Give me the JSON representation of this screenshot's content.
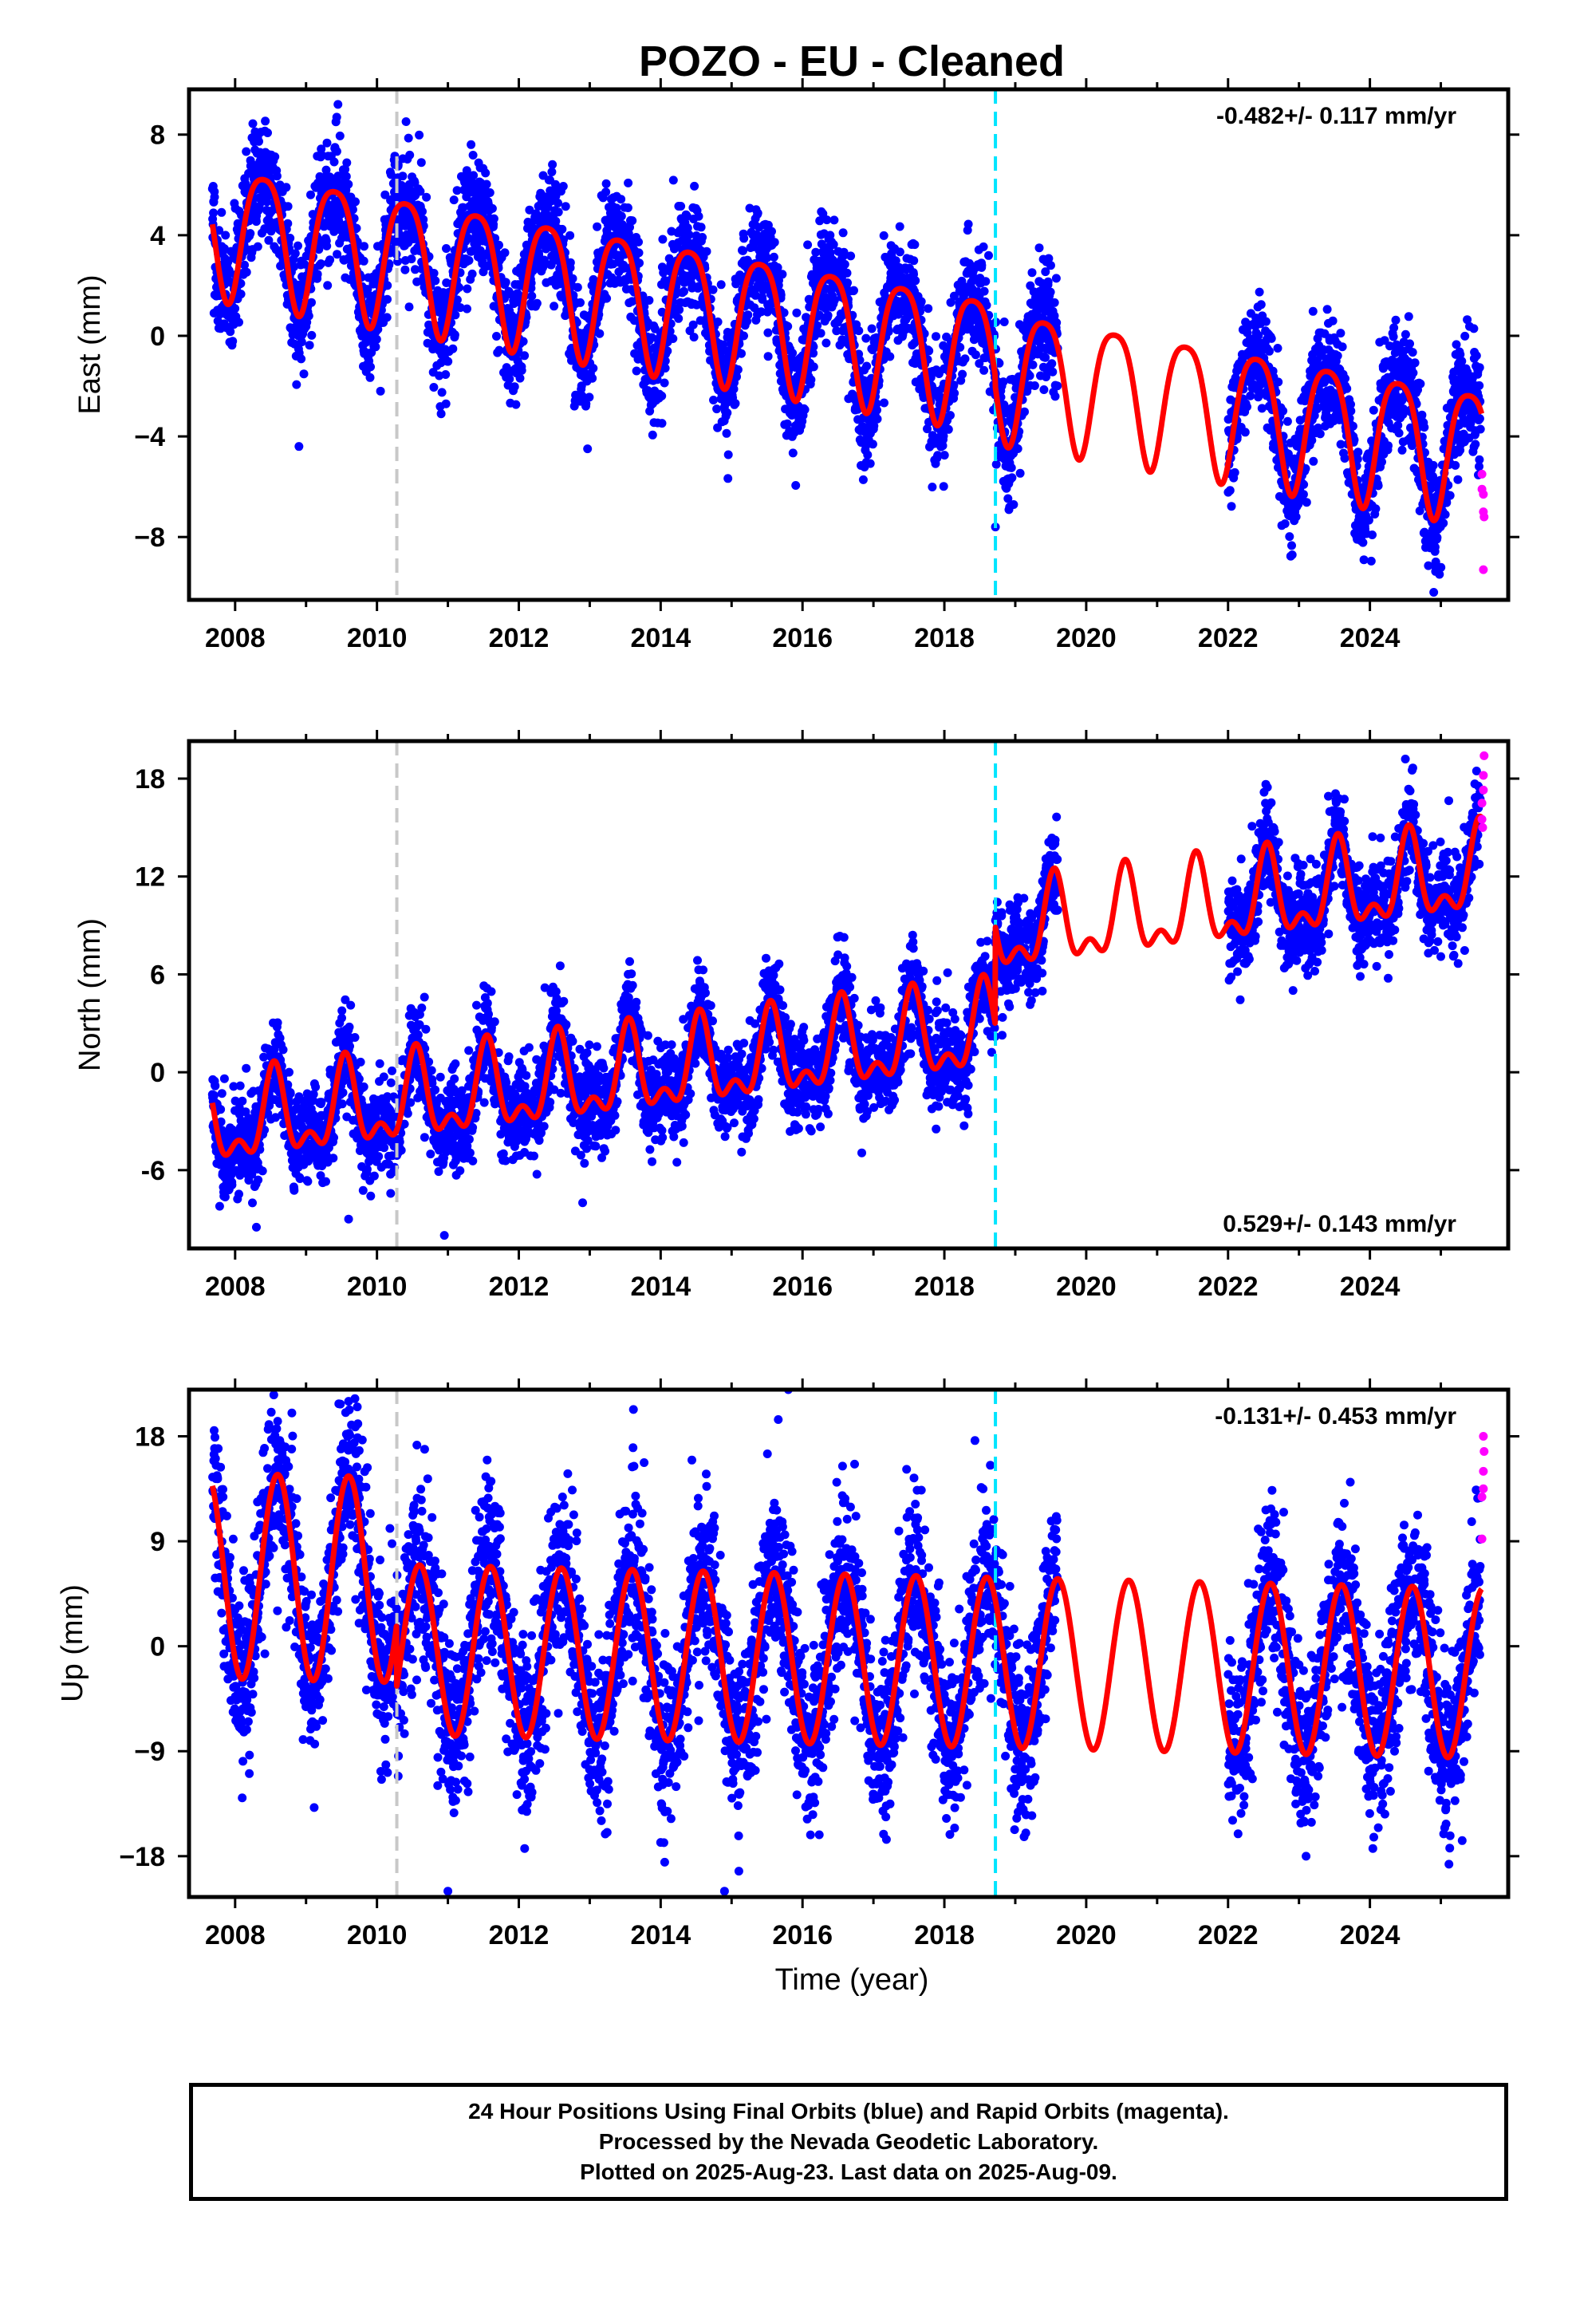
{
  "title": "POZO  - EU - Cleaned",
  "xlabel": "Time (year)",
  "footer": [
    "24 Hour Positions Using Final Orbits (blue) and Rapid Orbits (magenta).",
    "Processed by the Nevada Geodetic Laboratory.",
    "Plotted on 2025-Aug-23. Last data on 2025-Aug-09."
  ],
  "colors": {
    "final_orbits": "#0000ff",
    "rapid_orbits": "#ff00ff",
    "model_fit": "#ff0000",
    "antenna_change_line": "#c8c8c8",
    "equipment_change_line": "#00e5ff"
  },
  "chart_data": [
    {
      "type": "scatter",
      "panel": "east",
      "ylabel": "East (mm)",
      "rate_text": "-0.482+/- 0.117 mm/yr",
      "rate_position": "top-right",
      "xlim": [
        2007.35,
        2025.95
      ],
      "ylim": [
        -10.5,
        9.8
      ],
      "xticks": [
        2008,
        2010,
        2012,
        2014,
        2016,
        2018,
        2020,
        2022,
        2024
      ],
      "yticks": [
        8,
        4,
        0,
        -4,
        -8
      ],
      "ytick_labels": [
        "8",
        "4",
        "0",
        "−4",
        "−8"
      ],
      "vertical_lines": [
        {
          "x": 2010.28,
          "style": "dashed",
          "color": "#c8c8c8"
        },
        {
          "x": 2018.72,
          "style": "dashed",
          "color": "#00e5ff"
        }
      ],
      "data_gap": [
        2019.6,
        2022.0
      ],
      "model": {
        "offset": 4.3,
        "rate": -0.482,
        "ref_year": 2008.0,
        "annual_amp": 2.6,
        "annual_phase": 2008.4,
        "semiannual_amp": 0.5,
        "semiannual_phase": 2008.15,
        "steps": [
          {
            "x": 2018.72,
            "delta": -0.4
          }
        ]
      },
      "noise_sd": 1.1,
      "rapid_orbits": [
        [
          2025.58,
          -5.5
        ],
        [
          2025.58,
          -6.1
        ],
        [
          2025.6,
          -6.3
        ],
        [
          2025.6,
          -7.0
        ],
        [
          2025.61,
          -7.2
        ],
        [
          2025.6,
          -9.3
        ]
      ],
      "outliers": [
        [
          2008.9,
          -4.4
        ],
        [
          2009.45,
          9.2
        ],
        [
          2010.05,
          -2.2
        ],
        [
          2019.5,
          2.8
        ],
        [
          2018.72,
          -7.6
        ],
        [
          2024.9,
          -10.2
        ]
      ]
    },
    {
      "type": "scatter",
      "panel": "north",
      "ylabel": "North (mm)",
      "rate_text": "0.529+/- 0.143 mm/yr",
      "rate_position": "bottom-right",
      "xlim": [
        2007.35,
        2025.95
      ],
      "ylim": [
        -10.8,
        20.3
      ],
      "xticks": [
        2008,
        2010,
        2012,
        2014,
        2016,
        2018,
        2020,
        2022,
        2024
      ],
      "yticks": [
        18,
        12,
        6,
        0,
        -6
      ],
      "ytick_labels": [
        "18",
        "12",
        "6",
        "0",
        "-6"
      ],
      "vertical_lines": [
        {
          "x": 2010.28,
          "style": "dashed",
          "color": "#c8c8c8"
        },
        {
          "x": 2018.72,
          "style": "dashed",
          "color": "#00e5ff"
        }
      ],
      "data_gap": [
        2019.6,
        2022.0
      ],
      "model": {
        "offset": -3.2,
        "rate": 0.529,
        "ref_year": 2008.0,
        "annual_amp": 2.3,
        "annual_phase": 2008.55,
        "semiannual_amp": 1.3,
        "semiannual_phase": 2008.55,
        "steps": [
          {
            "x": 2018.72,
            "delta": 6.0
          }
        ]
      },
      "noise_sd": 1.4,
      "rapid_orbits": [
        [
          2025.58,
          15.5
        ],
        [
          2025.58,
          16.5
        ],
        [
          2025.6,
          17.3
        ],
        [
          2025.6,
          18.2
        ],
        [
          2025.61,
          19.4
        ],
        [
          2025.59,
          15.0
        ]
      ],
      "outliers": [
        [
          2008.3,
          -9.5
        ],
        [
          2009.6,
          -9.0
        ],
        [
          2010.95,
          -10.0
        ],
        [
          2012.9,
          -8.0
        ],
        [
          2016.5,
          7.2
        ],
        [
          2024.5,
          19.2
        ]
      ]
    },
    {
      "type": "scatter",
      "panel": "up",
      "ylabel": "Up (mm)",
      "rate_text": "-0.131+/- 0.453 mm/yr",
      "rate_position": "top-right",
      "xlim": [
        2007.35,
        2025.95
      ],
      "ylim": [
        -21.5,
        22.0
      ],
      "xticks": [
        2008,
        2010,
        2012,
        2014,
        2016,
        2018,
        2020,
        2022,
        2024
      ],
      "xlabel": "Time (year)",
      "yticks": [
        18,
        9,
        0,
        -9,
        -18
      ],
      "ytick_labels": [
        "18",
        "9",
        "0",
        "-9",
        "-18"
      ],
      "ytick_text": [
        "18",
        "9",
        "0",
        "−9",
        "−18"
      ],
      "vertical_lines": [
        {
          "x": 2010.28,
          "style": "dashed",
          "color": "#c8c8c8"
        },
        {
          "x": 2018.72,
          "style": "dashed",
          "color": "#00e5ff"
        }
      ],
      "data_gap": [
        2019.6,
        2022.0
      ],
      "model": {
        "offset": 0.0,
        "rate": -0.131,
        "ref_year": 2008.0,
        "annual_amp": 7.3,
        "annual_phase": 2008.6,
        "semiannual_amp": 0.0,
        "semiannual_phase": 2008.6,
        "pre_break_offset": 6.0,
        "break": 2010.28,
        "steps": []
      },
      "noise_sd": 3.6,
      "rapid_orbits": [
        [
          2025.58,
          9.2
        ],
        [
          2025.58,
          12.8
        ],
        [
          2025.6,
          13.5
        ],
        [
          2025.6,
          15.0
        ],
        [
          2025.61,
          16.7
        ],
        [
          2025.6,
          18.0
        ]
      ],
      "outliers": [
        [
          2008.8,
          20.0
        ],
        [
          2009.6,
          21.0
        ],
        [
          2011.0,
          -21.0
        ],
        [
          2014.9,
          -21.0
        ],
        [
          2015.8,
          22.0
        ],
        [
          2023.1,
          -18.0
        ],
        [
          2008.1,
          -13.0
        ]
      ]
    }
  ]
}
